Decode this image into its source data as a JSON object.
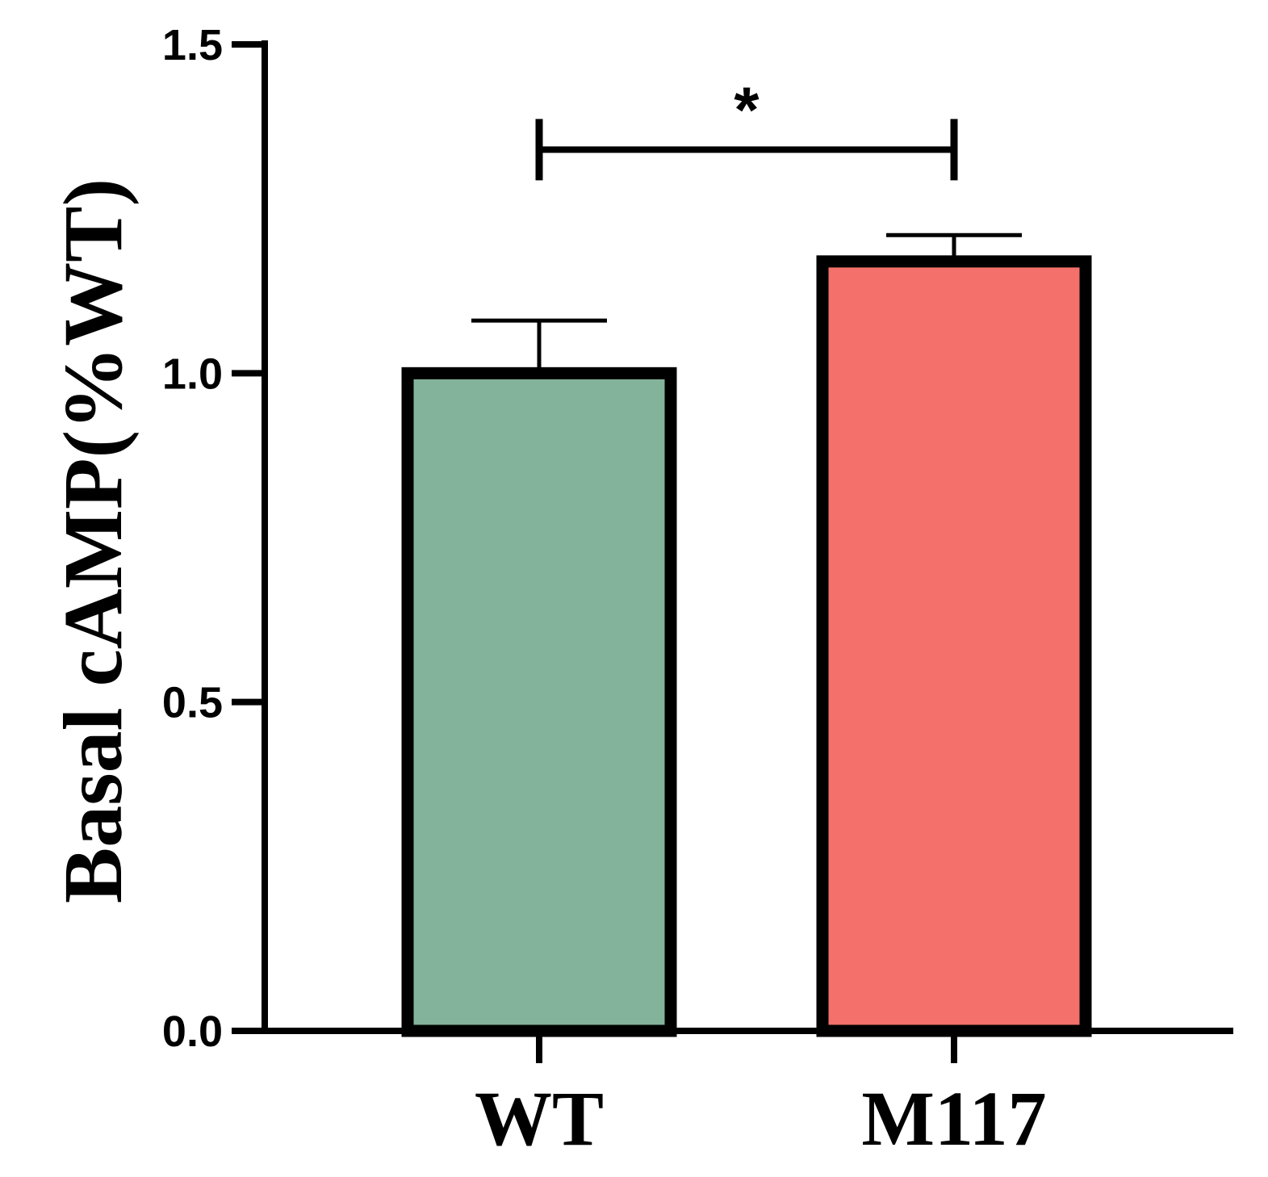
{
  "chart_data": {
    "type": "bar",
    "title": "",
    "xlabel": "",
    "ylabel": "Basal cAMP(%WT)",
    "ylim": [
      0,
      1.5
    ],
    "yticks": [
      0.0,
      0.5,
      1.0,
      1.5
    ],
    "ytick_labels": [
      "0.0",
      "0.5",
      "1.0",
      "1.5"
    ],
    "categories": [
      "WT",
      "M117"
    ],
    "values": [
      1.0,
      1.17
    ],
    "errors": [
      0.08,
      0.04
    ],
    "colors": [
      "#84b39b",
      "#f4706a"
    ],
    "significance": {
      "from": "WT",
      "to": "M117",
      "label": "*",
      "level": 1.34
    }
  }
}
